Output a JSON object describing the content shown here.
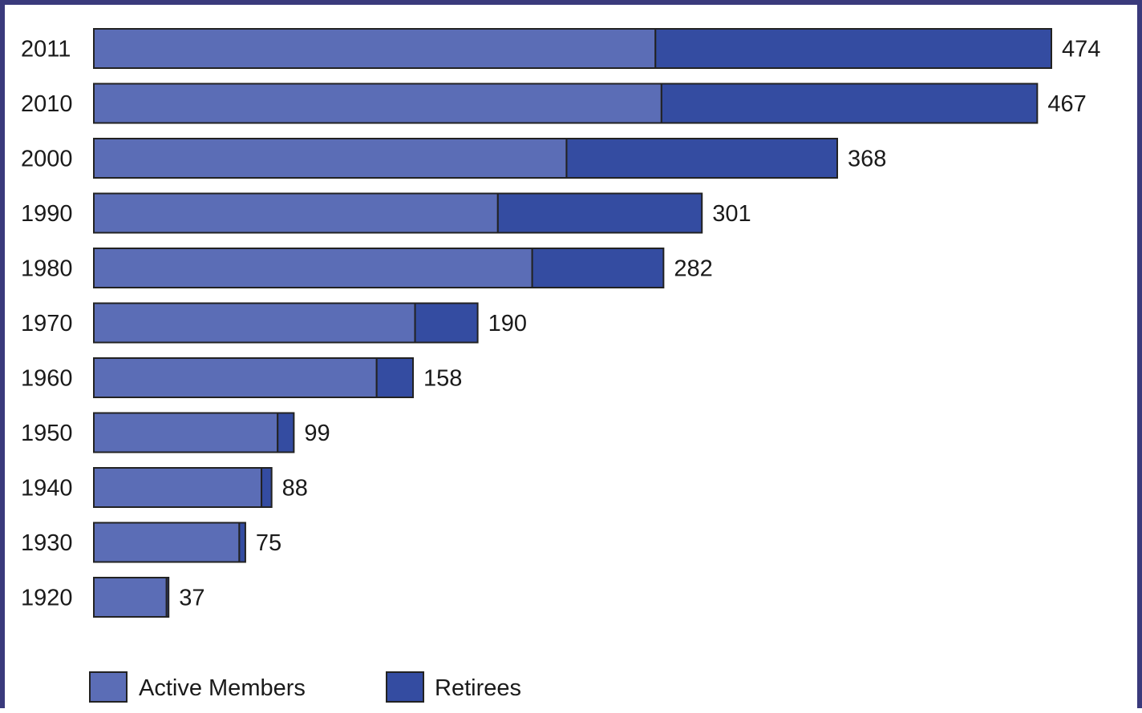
{
  "chart_data": {
    "type": "bar",
    "orientation": "horizontal",
    "stacked": true,
    "categories": [
      "2011",
      "2010",
      "2000",
      "1990",
      "1980",
      "1970",
      "1960",
      "1950",
      "1940",
      "1930",
      "1920"
    ],
    "series": [
      {
        "name": "Active Members",
        "values": [
          278,
          281,
          234,
          200,
          217,
          159,
          140,
          91,
          83,
          72,
          36
        ]
      },
      {
        "name": "Retirees",
        "values": [
          196,
          186,
          134,
          101,
          65,
          31,
          18,
          8,
          5,
          3,
          1
        ]
      }
    ],
    "totals": [
      "474",
      "467",
      "368",
      "301",
      "282",
      "190",
      "158",
      "99",
      "88",
      "75",
      "37"
    ],
    "xlim": [
      0,
      474
    ],
    "grid": false,
    "legend_position": "bottom-left",
    "colors": {
      "Active Members": "#5b6db6",
      "Retirees": "#344ca1",
      "frame": "#3a3a7c",
      "outline": "#222222"
    }
  }
}
